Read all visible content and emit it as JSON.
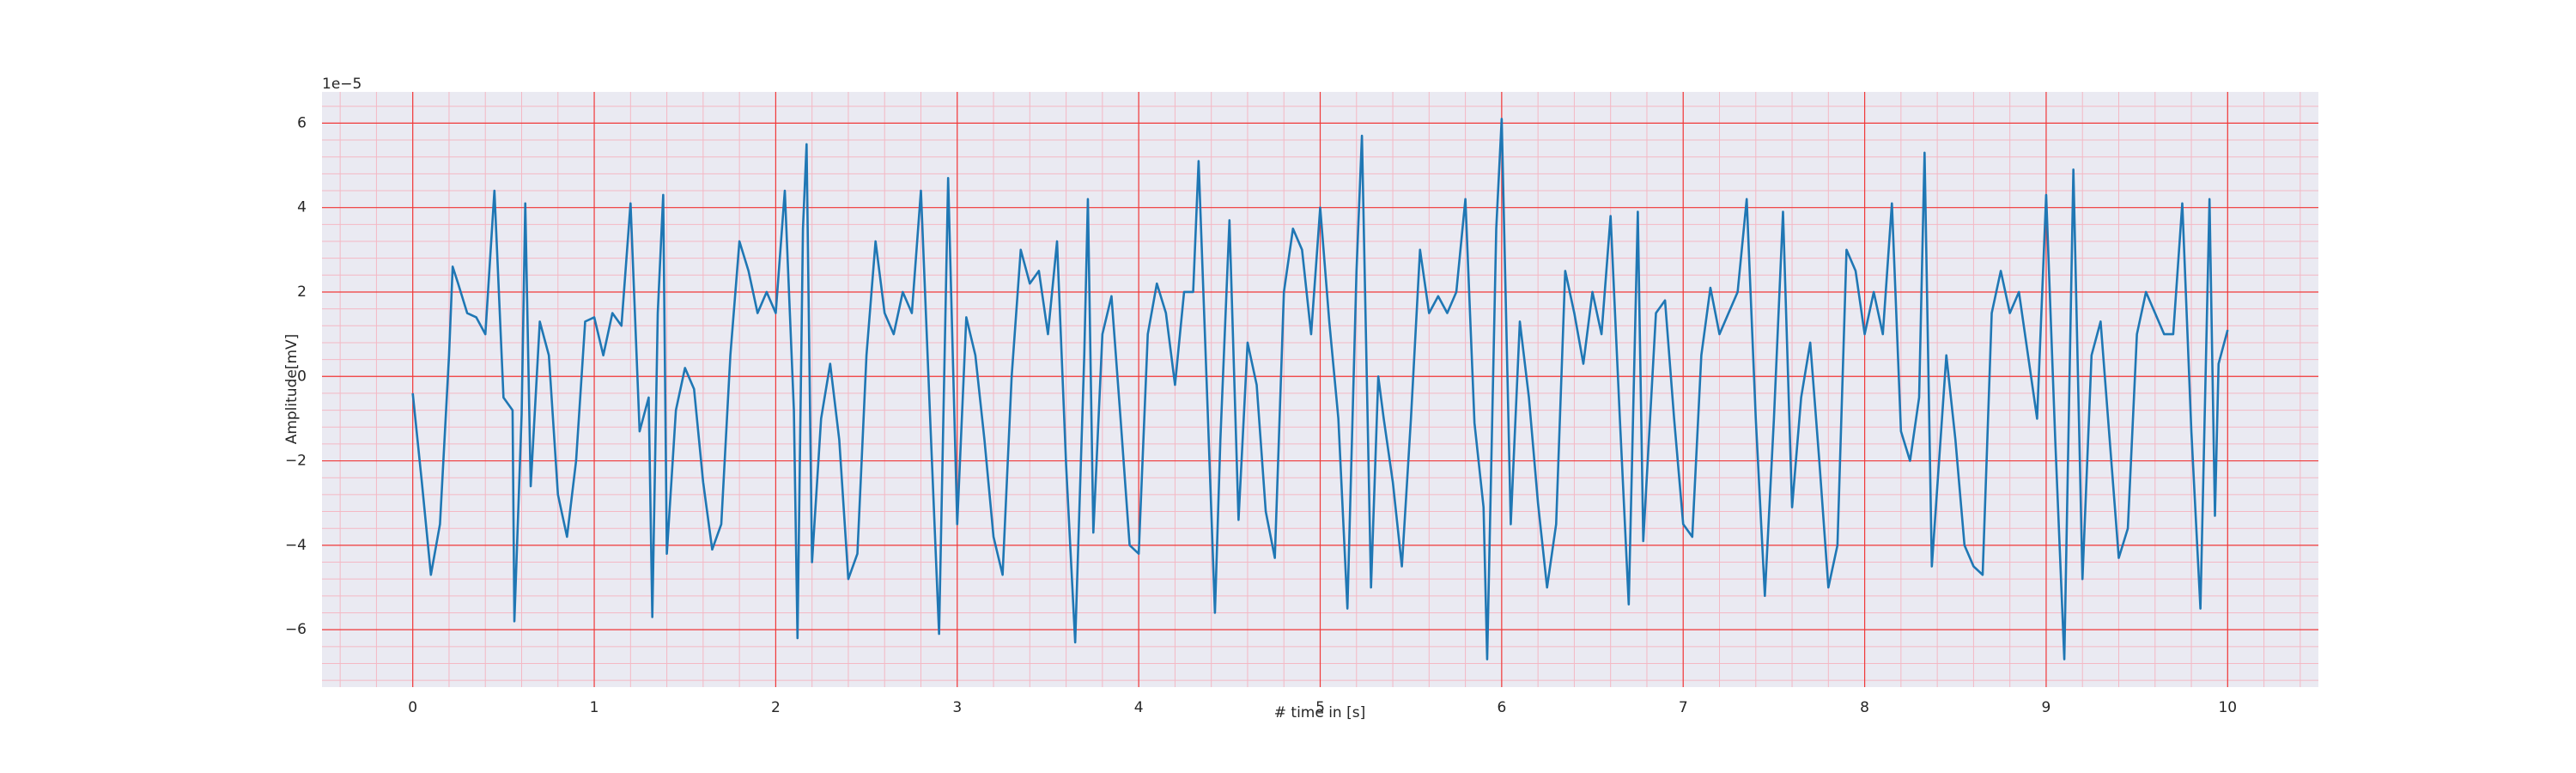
{
  "chart_data": {
    "type": "line",
    "x_label": "# time in [s]",
    "y_label": "Amplitude[mV]",
    "y_offset_text": "1e−5",
    "color": "#1f77b4",
    "grid": true,
    "minor_grid": true,
    "xlim": [
      -0.5,
      10.5
    ],
    "xticks": [
      0,
      1,
      2,
      3,
      4,
      5,
      6,
      7,
      8,
      9,
      10
    ],
    "ylim": [
      -7.36,
      6.74
    ],
    "yticks": [
      {
        "value": -6,
        "label": "−6"
      },
      {
        "value": -4,
        "label": "−4"
      },
      {
        "value": -2,
        "label": "−2"
      },
      0,
      2,
      4,
      6
    ],
    "x": [
      0,
      0.05,
      0.1,
      0.15,
      0.2,
      0.22,
      0.25,
      0.3,
      0.35,
      0.4,
      0.45,
      0.5,
      0.55,
      0.56,
      0.6,
      0.62,
      0.65,
      0.7,
      0.75,
      0.8,
      0.85,
      0.9,
      0.95,
      1.0,
      1.05,
      1.1,
      1.15,
      1.2,
      1.25,
      1.3,
      1.32,
      1.35,
      1.38,
      1.4,
      1.45,
      1.5,
      1.55,
      1.6,
      1.65,
      1.7,
      1.75,
      1.8,
      1.85,
      1.9,
      1.95,
      2.0,
      2.05,
      2.1,
      2.12,
      2.15,
      2.17,
      2.2,
      2.25,
      2.3,
      2.35,
      2.4,
      2.45,
      2.5,
      2.55,
      2.6,
      2.65,
      2.7,
      2.75,
      2.8,
      2.85,
      2.9,
      2.95,
      3.0,
      3.05,
      3.1,
      3.15,
      3.2,
      3.25,
      3.3,
      3.35,
      3.4,
      3.45,
      3.5,
      3.55,
      3.6,
      3.65,
      3.7,
      3.72,
      3.75,
      3.8,
      3.85,
      3.9,
      3.95,
      4.0,
      4.05,
      4.1,
      4.15,
      4.2,
      4.25,
      4.3,
      4.33,
      4.38,
      4.42,
      4.45,
      4.5,
      4.55,
      4.6,
      4.65,
      4.7,
      4.75,
      4.8,
      4.85,
      4.9,
      4.95,
      5.0,
      5.05,
      5.1,
      5.15,
      5.2,
      5.23,
      5.28,
      5.32,
      5.35,
      5.4,
      5.45,
      5.5,
      5.55,
      5.6,
      5.65,
      5.7,
      5.75,
      5.8,
      5.85,
      5.9,
      5.92,
      5.97,
      6.0,
      6.05,
      6.1,
      6.15,
      6.2,
      6.25,
      6.3,
      6.35,
      6.4,
      6.45,
      6.5,
      6.55,
      6.6,
      6.65,
      6.7,
      6.75,
      6.78,
      6.85,
      6.9,
      6.95,
      7.0,
      7.05,
      7.1,
      7.15,
      7.2,
      7.25,
      7.3,
      7.35,
      7.4,
      7.45,
      7.5,
      7.55,
      7.6,
      7.65,
      7.7,
      7.75,
      7.8,
      7.85,
      7.9,
      7.95,
      8.0,
      8.05,
      8.1,
      8.15,
      8.2,
      8.25,
      8.3,
      8.33,
      8.37,
      8.45,
      8.5,
      8.55,
      8.6,
      8.65,
      8.7,
      8.75,
      8.8,
      8.85,
      8.9,
      8.95,
      9.0,
      9.05,
      9.1,
      9.15,
      9.2,
      9.25,
      9.3,
      9.35,
      9.4,
      9.45,
      9.5,
      9.55,
      9.6,
      9.65,
      9.7,
      9.75,
      9.8,
      9.85,
      9.9,
      9.93,
      9.95,
      10.0
    ],
    "values": [
      -0.4,
      -2.5,
      -4.7,
      -3.5,
      0.5,
      2.6,
      2.2,
      1.5,
      1.4,
      1.0,
      4.4,
      -0.5,
      -0.8,
      -5.8,
      -0.9,
      4.1,
      -2.6,
      1.3,
      0.5,
      -2.8,
      -3.8,
      -2.0,
      1.3,
      1.4,
      0.5,
      1.5,
      1.2,
      4.1,
      -1.3,
      -0.5,
      -5.7,
      1.5,
      4.3,
      -4.2,
      -0.8,
      0.2,
      -0.3,
      -2.5,
      -4.1,
      -3.5,
      0.5,
      3.2,
      2.5,
      1.5,
      2.0,
      1.5,
      4.4,
      -0.8,
      -6.2,
      3.5,
      5.5,
      -4.4,
      -1.0,
      0.3,
      -1.5,
      -4.8,
      -4.2,
      0.5,
      3.2,
      1.5,
      1.0,
      2.0,
      1.5,
      4.4,
      -0.9,
      -6.1,
      4.7,
      -3.5,
      1.4,
      0.5,
      -1.5,
      -3.8,
      -4.7,
      0.0,
      3.0,
      2.2,
      2.5,
      1.0,
      3.2,
      -2.1,
      -6.3,
      0.5,
      4.2,
      -3.7,
      1.0,
      1.9,
      -1.0,
      -4.0,
      -4.2,
      1.0,
      2.2,
      1.5,
      -0.2,
      2.0,
      2.0,
      5.1,
      -0.8,
      -5.6,
      -1.5,
      3.7,
      -3.4,
      0.8,
      -0.2,
      -3.2,
      -4.3,
      2.0,
      3.5,
      3.0,
      1.0,
      4.0,
      1.3,
      -1.0,
      -5.5,
      2.5,
      5.7,
      -5.0,
      0.0,
      -1.0,
      -2.5,
      -4.5,
      -1.0,
      3.0,
      1.5,
      1.9,
      1.5,
      2.0,
      4.2,
      -1.1,
      -3.1,
      -6.7,
      3.5,
      6.1,
      -3.5,
      1.3,
      -0.5,
      -3.0,
      -5.0,
      -3.5,
      2.5,
      1.5,
      0.3,
      2.0,
      1.0,
      3.8,
      -0.9,
      -5.4,
      3.9,
      -3.9,
      1.5,
      1.8,
      -1.0,
      -3.5,
      -3.8,
      0.5,
      2.1,
      1.0,
      1.5,
      2.0,
      4.2,
      -1.0,
      -5.2,
      -1.0,
      3.9,
      -3.1,
      -0.5,
      0.8,
      -2.0,
      -5.0,
      -4.0,
      3.0,
      2.5,
      1.0,
      2.0,
      1.0,
      4.1,
      -1.3,
      -2.0,
      -0.5,
      5.3,
      -4.5,
      0.5,
      -1.5,
      -4.0,
      -4.5,
      -4.7,
      1.5,
      2.5,
      1.5,
      2.0,
      0.5,
      -1.0,
      4.3,
      -1.5,
      -6.7,
      4.9,
      -4.8,
      0.5,
      1.3,
      -1.5,
      -4.3,
      -3.6,
      1.0,
      2.0,
      1.5,
      1.0,
      1.0,
      4.1,
      -1.3,
      -5.5,
      4.2,
      -3.3,
      0.3,
      1.1
    ]
  }
}
